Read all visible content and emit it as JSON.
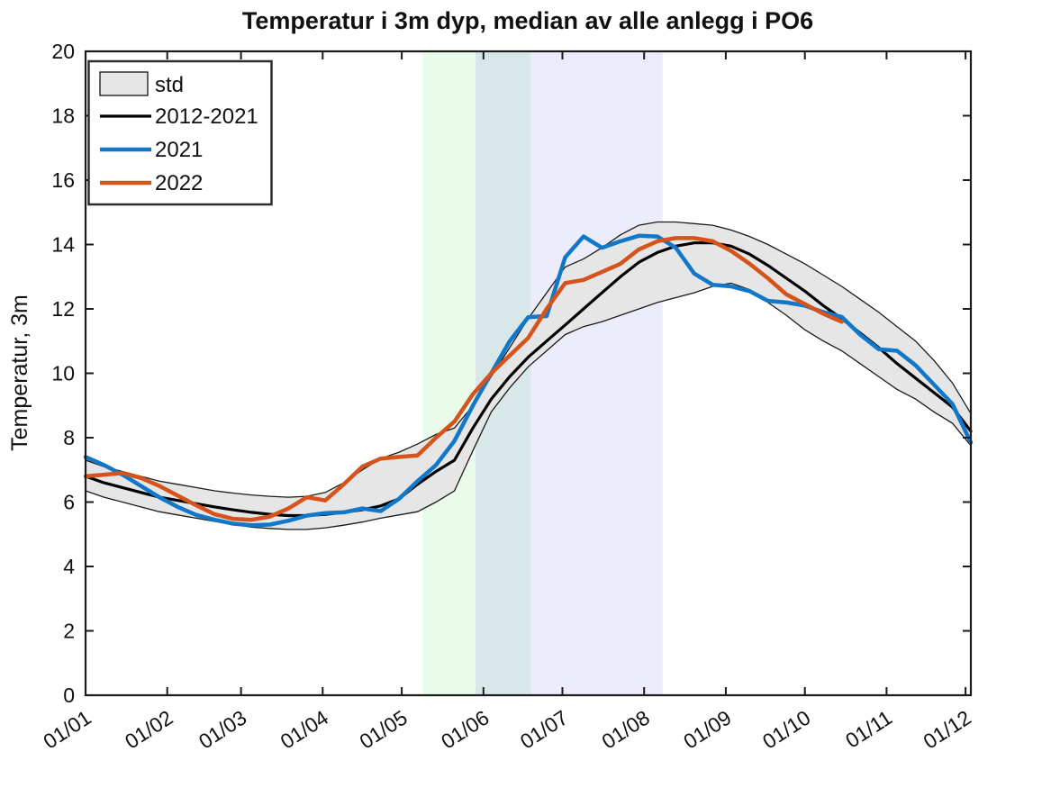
{
  "chart_data": {
    "type": "line",
    "title": "Temperatur i 3m dyp, median av alle anlegg i PO6",
    "xlabel": "",
    "ylabel": "Temperatur, 3m",
    "ylim": [
      0,
      20
    ],
    "xlim_days": [
      0,
      336
    ],
    "grid": false,
    "y_ticks": [
      0,
      2,
      4,
      6,
      8,
      10,
      12,
      14,
      16,
      18,
      20
    ],
    "x_ticks": [
      {
        "day": 0,
        "label": "01/01"
      },
      {
        "day": 31,
        "label": "01/02"
      },
      {
        "day": 59,
        "label": "01/03"
      },
      {
        "day": 90,
        "label": "01/04"
      },
      {
        "day": 120,
        "label": "01/05"
      },
      {
        "day": 151,
        "label": "01/06"
      },
      {
        "day": 181,
        "label": "01/07"
      },
      {
        "day": 212,
        "label": "01/08"
      },
      {
        "day": 243,
        "label": "01/09"
      },
      {
        "day": 273,
        "label": "01/10"
      },
      {
        "day": 304,
        "label": "01/11"
      },
      {
        "day": 334,
        "label": "01/12"
      }
    ],
    "legend": {
      "position": "top-left",
      "items": [
        {
          "label": "std",
          "type": "patch",
          "fill": "#E6E6E6",
          "edge": "#000000"
        },
        {
          "label": "2012-2021",
          "type": "line",
          "color": "#000000"
        },
        {
          "label": "2021",
          "type": "line",
          "color": "#1177C9"
        },
        {
          "label": "2022",
          "type": "line",
          "color": "#D6531C"
        }
      ]
    },
    "highlight_bands": [
      {
        "name": "green-band",
        "from_day": 128,
        "to_day": 169,
        "color": "rgba(96,224,104,0.14)"
      },
      {
        "name": "violet-band",
        "from_day": 148,
        "to_day": 219,
        "color": "rgba(106,106,234,0.13)"
      }
    ],
    "days": [
      0,
      7,
      14,
      21,
      28,
      35,
      42,
      49,
      56,
      63,
      70,
      77,
      84,
      91,
      98,
      105,
      112,
      119,
      126,
      133,
      140,
      147,
      154,
      161,
      168,
      175,
      182,
      189,
      196,
      203,
      210,
      217,
      224,
      231,
      238,
      245,
      252,
      259,
      266,
      273,
      280,
      287,
      294,
      301,
      308,
      315,
      322,
      329,
      336
    ],
    "series": [
      {
        "name": "std",
        "type": "band",
        "fill": "#E6E6E6",
        "edge_color": "#1A1A1A",
        "lower": [
          6.35,
          6.15,
          6.0,
          5.85,
          5.7,
          5.6,
          5.5,
          5.4,
          5.3,
          5.22,
          5.18,
          5.15,
          5.15,
          5.2,
          5.28,
          5.38,
          5.5,
          5.6,
          5.7,
          6.0,
          6.35,
          7.6,
          8.8,
          9.55,
          10.2,
          10.7,
          11.2,
          11.45,
          11.6,
          11.8,
          12.0,
          12.2,
          12.35,
          12.5,
          12.7,
          12.8,
          12.6,
          12.2,
          11.8,
          11.35,
          11.0,
          10.7,
          10.3,
          9.9,
          9.5,
          9.2,
          8.8,
          8.45,
          7.75
        ],
        "upper": [
          7.3,
          7.1,
          6.95,
          6.8,
          6.65,
          6.55,
          6.45,
          6.35,
          6.28,
          6.22,
          6.18,
          6.15,
          6.18,
          6.3,
          6.6,
          7.0,
          7.35,
          7.55,
          7.8,
          8.1,
          8.3,
          9.0,
          9.9,
          10.8,
          11.7,
          12.5,
          13.3,
          13.55,
          13.9,
          14.3,
          14.6,
          14.7,
          14.7,
          14.65,
          14.6,
          14.45,
          14.25,
          14.0,
          13.7,
          13.4,
          13.05,
          12.7,
          12.3,
          11.9,
          11.45,
          11.0,
          10.4,
          9.7,
          8.75
        ]
      },
      {
        "name": "2012-2021",
        "type": "line",
        "color": "#000000",
        "width": 3.2,
        "values": [
          6.8,
          6.6,
          6.45,
          6.3,
          6.15,
          6.05,
          5.95,
          5.85,
          5.76,
          5.68,
          5.62,
          5.58,
          5.58,
          5.62,
          5.68,
          5.76,
          5.88,
          6.1,
          6.55,
          6.95,
          7.3,
          8.3,
          9.2,
          9.9,
          10.5,
          11.0,
          11.5,
          12.0,
          12.5,
          13.0,
          13.45,
          13.75,
          13.95,
          14.05,
          14.05,
          13.95,
          13.7,
          13.35,
          12.95,
          12.55,
          12.1,
          11.7,
          11.25,
          10.8,
          10.3,
          9.85,
          9.4,
          8.95,
          8.2
        ]
      },
      {
        "name": "2021",
        "type": "line",
        "color": "#1177C9",
        "width": 4.5,
        "values": [
          7.4,
          7.15,
          6.85,
          6.5,
          6.15,
          5.85,
          5.6,
          5.45,
          5.33,
          5.28,
          5.3,
          5.42,
          5.58,
          5.66,
          5.68,
          5.8,
          5.72,
          6.1,
          6.65,
          7.15,
          7.9,
          9.0,
          10.0,
          11.0,
          11.74,
          11.78,
          13.6,
          14.25,
          13.9,
          14.1,
          14.27,
          14.25,
          13.9,
          13.1,
          12.75,
          12.7,
          12.55,
          12.25,
          12.2,
          12.1,
          11.9,
          11.75,
          11.2,
          10.75,
          10.7,
          10.25,
          9.65,
          9.05,
          7.85
        ]
      },
      {
        "name": "2022",
        "type": "line",
        "color": "#D6531C",
        "width": 4.5,
        "values": [
          6.8,
          6.85,
          6.9,
          6.75,
          6.5,
          6.2,
          5.9,
          5.62,
          5.48,
          5.45,
          5.55,
          5.8,
          6.15,
          6.05,
          6.55,
          7.1,
          7.35,
          7.4,
          7.45,
          8.0,
          8.5,
          9.35,
          10.0,
          10.55,
          11.1,
          12.0,
          12.8,
          12.9,
          13.15,
          13.4,
          13.85,
          14.1,
          14.2,
          14.2,
          14.1,
          13.8,
          13.4,
          12.95,
          12.45,
          12.15,
          11.85,
          11.6
        ]
      }
    ]
  }
}
